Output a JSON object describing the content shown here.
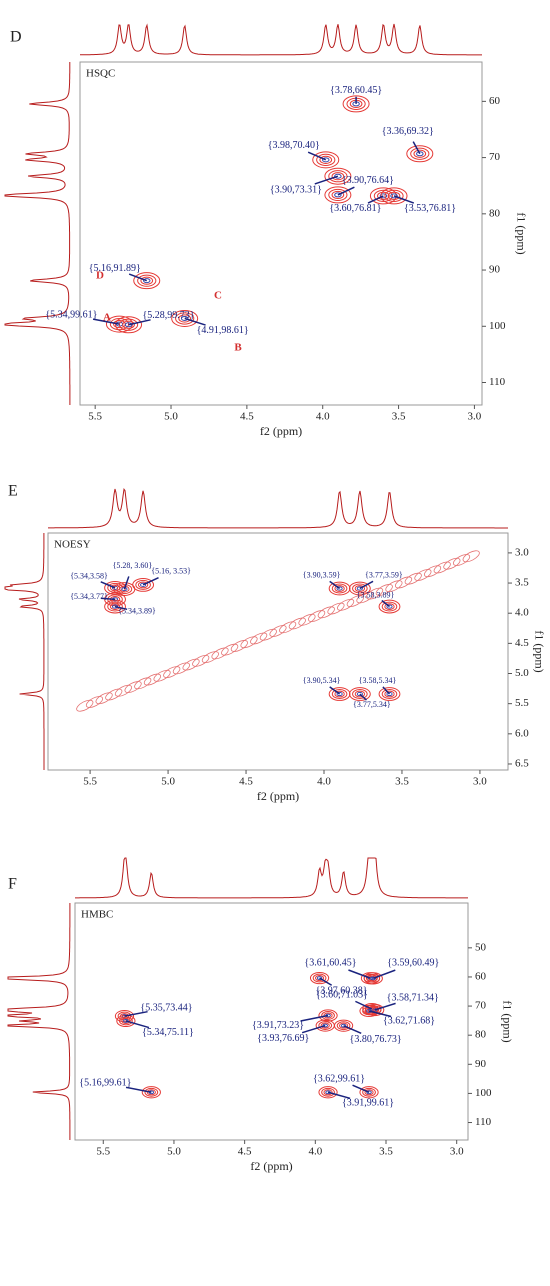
{
  "chart_data": [
    {
      "type": "scatter",
      "panel": "D",
      "title": "HSQC",
      "xlabel": "f2 (ppm)",
      "ylabel": "f1 (ppm)",
      "xlim": [
        5.6,
        2.95
      ],
      "ylim": [
        53,
        114
      ],
      "xticks": [
        5.5,
        {
          "value": 5,
          "label": "5.0"
        },
        4.5,
        {
          "value": 4,
          "label": "4.0"
        },
        3.5,
        {
          "value": 3,
          "label": "3.0"
        }
      ],
      "yticks": [
        60,
        70,
        80,
        90,
        100,
        110
      ],
      "x": [
        3.78,
        3.98,
        3.36,
        3.9,
        3.9,
        3.6,
        3.53,
        5.16,
        5.34,
        5.28,
        4.91
      ],
      "values": [
        60.45,
        70.4,
        69.32,
        76.64,
        73.31,
        76.81,
        76.81,
        91.89,
        99.61,
        99.73,
        98.61
      ],
      "value_labels": [
        "{3.78,60.45}",
        "{3.98,70.40}",
        "{3.36,69.32}",
        "{3.90,76.64}",
        "{3.90,73.31}",
        "{3.60,76.81}",
        "{3.53,76.81}",
        "{5.16,91.89}",
        "{5.34,99.61}",
        "{5.28,99.73}",
        "{4.91,98.61}"
      ],
      "annotations": [
        "A",
        "B",
        "C",
        "D"
      ]
    },
    {
      "type": "scatter",
      "panel": "E",
      "title": "NOESY",
      "xlabel": "f2 (ppm)",
      "ylabel": "f1 (ppm)",
      "xlim": [
        5.77,
        2.82
      ],
      "ylim": [
        2.67,
        6.6
      ],
      "xticks": [
        5.5,
        {
          "value": 5,
          "label": "5.0"
        },
        4.5,
        {
          "value": 4,
          "label": "4.0"
        },
        3.5,
        {
          "value": 3,
          "label": "3.0"
        }
      ],
      "yticks": [
        {
          "value": 3,
          "label": "3.0"
        },
        3.5,
        {
          "value": 4,
          "label": "4.0"
        },
        4.5,
        {
          "value": 5,
          "label": "5.0"
        },
        5.5,
        {
          "value": 6,
          "label": "6.0"
        },
        6.5
      ],
      "x": [
        5.34,
        5.28,
        5.16,
        5.34,
        5.34,
        3.9,
        3.77,
        3.58,
        3.9,
        3.58,
        3.77
      ],
      "values": [
        3.58,
        3.6,
        3.53,
        3.77,
        3.89,
        3.59,
        3.59,
        3.89,
        5.34,
        5.34,
        5.34
      ],
      "value_labels": [
        "{5.34,3.58}",
        "{5.28, 3.60}",
        "{5.16, 3.53}",
        "{5.34,3.77}",
        "{5.34,3.89}",
        "{3.90,3.59}",
        "{3.77,3.59}",
        "{3.58,3.89}",
        "{3.90,5.34}",
        "{3.58,5.34}",
        "{3.77,5.34}"
      ]
    },
    {
      "type": "scatter",
      "panel": "F",
      "title": "HMBC",
      "xlabel": "f2 (ppm)",
      "ylabel": "f1 (ppm)",
      "xlim": [
        5.7,
        2.92
      ],
      "ylim": [
        34.6,
        116
      ],
      "xticks": [
        5.5,
        {
          "value": 5,
          "label": "5.0"
        },
        4.5,
        {
          "value": 4,
          "label": "4.0"
        },
        3.5,
        {
          "value": 3,
          "label": "3.0"
        }
      ],
      "yticks": [
        50,
        60,
        70,
        80,
        90,
        100,
        110
      ],
      "x": [
        3.61,
        3.59,
        3.97,
        3.6,
        3.58,
        3.91,
        3.62,
        3.93,
        3.8,
        5.35,
        5.34,
        5.16,
        3.62,
        3.91
      ],
      "values": [
        60.45,
        60.49,
        60.38,
        71.03,
        71.34,
        73.23,
        71.68,
        76.69,
        76.73,
        73.44,
        75.11,
        99.61,
        99.61,
        99.61
      ],
      "value_labels": [
        "{3.61,60.45}",
        "{3.59,60.49}",
        "{3.97,60.38}",
        "{3.60,71.03}",
        "{3.58,71.34}",
        "{3.91,73.23}",
        "{3.62,71.68}",
        "{3.93,76.69}",
        "{3.80,76.73}",
        "{5.35,73.44}",
        "{5.34,75.11}",
        "{5.16,99.61}",
        "{3.62,99.61}",
        "{3.91,99.61}"
      ]
    }
  ]
}
